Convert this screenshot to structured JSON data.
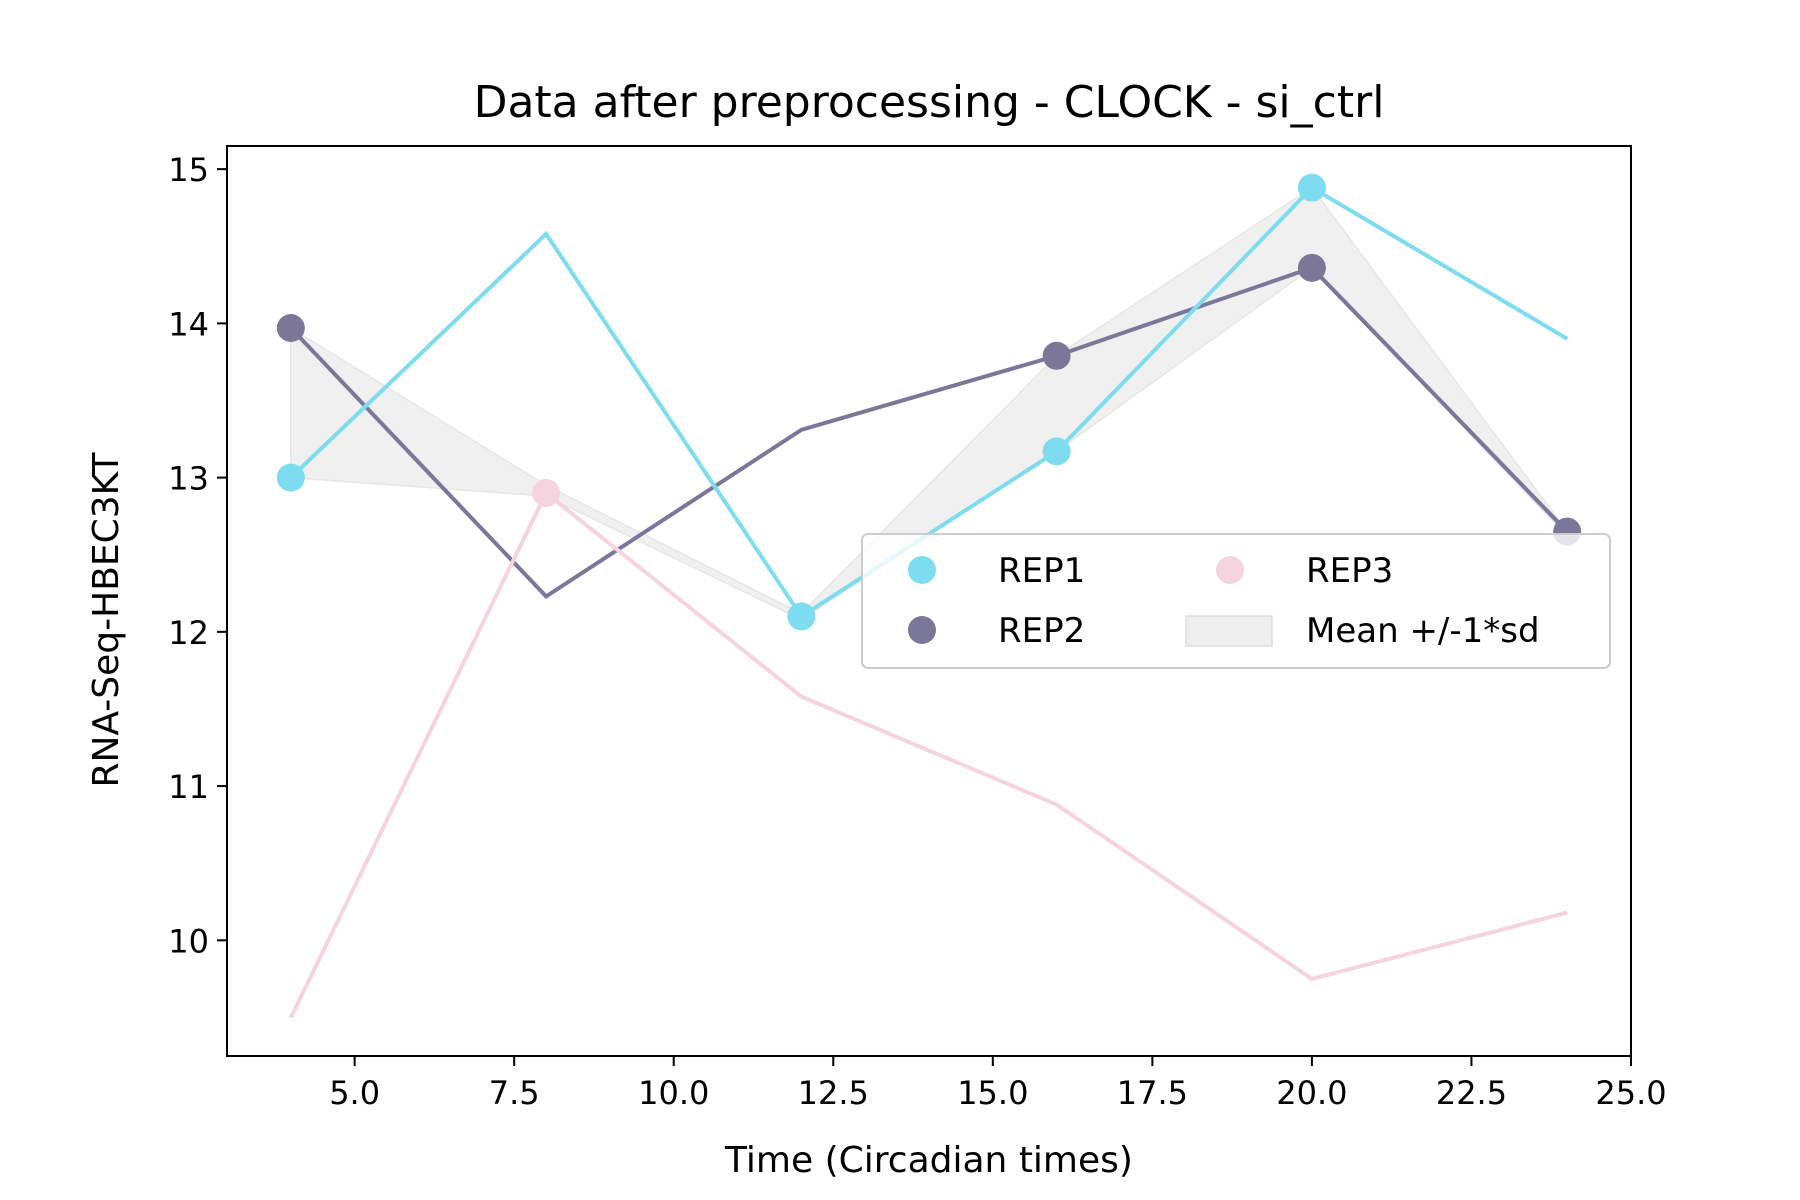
{
  "chart_data": {
    "type": "line",
    "title": "Data after preprocessing - CLOCK - si_ctrl",
    "xlabel": "Time (Circadian times)",
    "ylabel": "RNA-Seq-HBEC3KT",
    "xlim": [
      3.0,
      25.0
    ],
    "ylim": [
      9.25,
      15.15
    ],
    "x_ticks": [
      5.0,
      7.5,
      10.0,
      12.5,
      15.0,
      17.5,
      20.0,
      22.5,
      25.0
    ],
    "x_tick_labels": [
      "5.0",
      "7.5",
      "10.0",
      "12.5",
      "15.0",
      "17.5",
      "20.0",
      "22.5",
      "25.0"
    ],
    "y_ticks": [
      10,
      11,
      12,
      13,
      14,
      15
    ],
    "y_tick_labels": [
      "10",
      "11",
      "12",
      "13",
      "14",
      "15"
    ],
    "grid": false,
    "legend_position": "center-right",
    "series": [
      {
        "name": "REP1",
        "color": "#7ddcef",
        "line_x": [
          4,
          8,
          12,
          16,
          20,
          24
        ],
        "line_y": [
          13.0,
          14.58,
          12.1,
          13.17,
          14.88,
          13.9
        ],
        "points_x": [
          4,
          12,
          16,
          20
        ],
        "points_y": [
          13.0,
          12.1,
          13.17,
          14.88
        ]
      },
      {
        "name": "REP2",
        "color": "#7a7799",
        "line_x": [
          4,
          8,
          12,
          16,
          20,
          24
        ],
        "line_y": [
          13.97,
          12.23,
          13.31,
          13.79,
          14.36,
          12.65
        ],
        "points_x": [
          4,
          16,
          20,
          24
        ],
        "points_y": [
          13.97,
          13.79,
          14.36,
          12.65
        ]
      },
      {
        "name": "REP3",
        "color": "#f5d3df",
        "line_x": [
          4,
          8,
          12,
          16,
          20,
          24
        ],
        "line_y": [
          9.5,
          12.9,
          11.58,
          10.88,
          9.75,
          10.18
        ],
        "points_x": [
          8
        ],
        "points_y": [
          12.9
        ]
      }
    ],
    "band": {
      "name": "Mean +/-1*sd",
      "color": "#eeeeee",
      "x": [
        4,
        8,
        12,
        16,
        20,
        24
      ],
      "upper": [
        13.97,
        12.95,
        12.12,
        13.79,
        14.88,
        12.65
      ],
      "lower": [
        13.0,
        12.88,
        12.08,
        13.17,
        14.36,
        12.62
      ]
    },
    "legend": [
      {
        "label": "REP1",
        "kind": "marker",
        "color": "#7ddcef"
      },
      {
        "label": "REP3",
        "kind": "marker",
        "color": "#f5d3df"
      },
      {
        "label": "REP2",
        "kind": "marker",
        "color": "#7a7799"
      },
      {
        "label": "Mean +/-1*sd",
        "kind": "patch",
        "color": "#eeeeee"
      }
    ]
  }
}
